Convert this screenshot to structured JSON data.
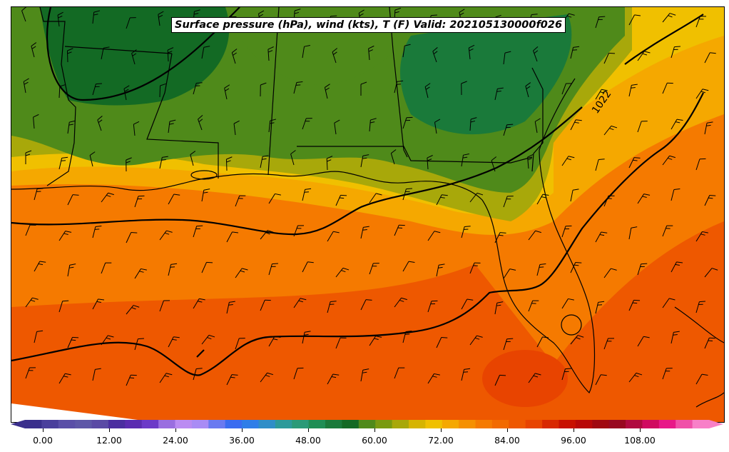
{
  "title": "Surface pressure (hPa), wind (kts), T (F) Valid: 202105130000f026",
  "isobar_labels": [
    "1022"
  ],
  "colorbar": {
    "ticks": [
      "0.00",
      "12.00",
      "24.00",
      "36.00",
      "48.00",
      "60.00",
      "72.00",
      "84.00",
      "96.00",
      "108.00"
    ],
    "colors": [
      "#3a2f8c",
      "#4a3f9c",
      "#5a4fa8",
      "#5e57a8",
      "#5a4aa5",
      "#4b2ea0",
      "#5b2cb0",
      "#6c3ac8",
      "#9a6ee0",
      "#bb8cf2",
      "#a98cf5",
      "#6a7af0",
      "#3a6cf0",
      "#2f7ee8",
      "#2f8ec8",
      "#2c9a9a",
      "#2a9a78",
      "#1f8e55",
      "#1a7a3a",
      "#136a24",
      "#4f8a1a",
      "#7a9a10",
      "#a8a80a",
      "#d6b400",
      "#f0c000",
      "#f5a800",
      "#f59000",
      "#f57a00",
      "#f26a00",
      "#ee5800",
      "#e84400",
      "#d82800",
      "#c81000",
      "#b80808",
      "#a00810",
      "#980820",
      "#b00a40",
      "#d00a60",
      "#e81888",
      "#f050a8",
      "#f880c8"
    ]
  },
  "isobars": [
    {
      "value": "",
      "kind": "northwest"
    },
    {
      "value": "",
      "kind": "gulf-north"
    },
    {
      "value": "",
      "kind": "gulf-mid"
    },
    {
      "value": "",
      "kind": "gulf-south"
    },
    {
      "value": "1022",
      "kind": "atlantic"
    }
  ],
  "colors": {
    "temp_65": "#4f8a1a",
    "temp_60": "#136a24",
    "temp_68": "#a8a80a",
    "temp_72": "#f0c000",
    "temp_76": "#f5a800",
    "temp_80": "#f57a00",
    "temp_84": "#ee5800",
    "temp_88": "#e84400"
  }
}
